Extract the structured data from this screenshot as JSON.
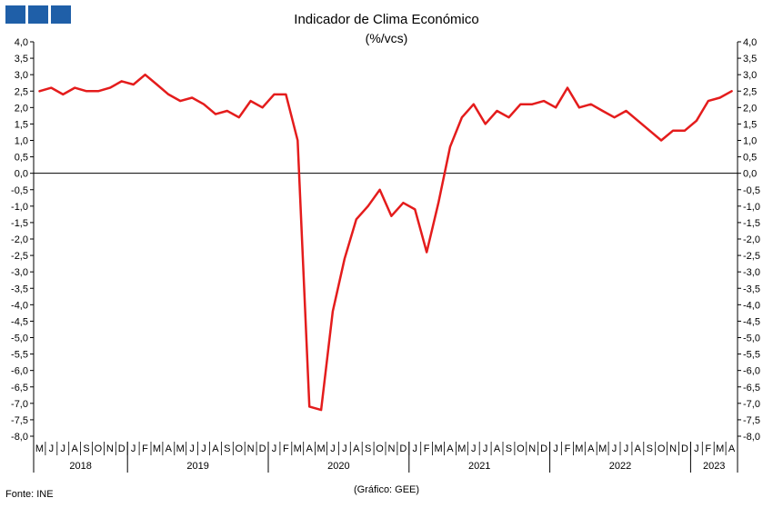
{
  "header": {
    "title": "Indicador de Clima Económico",
    "subtitle": "(%/vcs)"
  },
  "footer": {
    "source": "Fonte: INE",
    "credit": "(Gráfico: GEE)"
  },
  "colors": {
    "logo": "#1f5fa8",
    "line": "#e41c1c",
    "axis": "#000000"
  },
  "chart_data": {
    "type": "line",
    "title": "Indicador de Clima Económico",
    "subtitle": "(%/vcs)",
    "ylim": [
      -8.0,
      4.0
    ],
    "ytick_step": 0.5,
    "y_axes": "left-and-right",
    "grid": false,
    "legend": "none",
    "y_tick_labels": [
      "4,0",
      "3,5",
      "3,0",
      "2,5",
      "2,0",
      "1,5",
      "1,0",
      "0,5",
      "0,0",
      "-0,5",
      "-1,0",
      "-1,5",
      "-2,0",
      "-2,5",
      "-3,0",
      "-3,5",
      "-4,0",
      "-4,5",
      "-5,0",
      "-5,5",
      "-6,0",
      "-6,5",
      "-7,0",
      "-7,5",
      "-8,0"
    ],
    "x_month_labels": [
      "M",
      "J",
      "J",
      "A",
      "S",
      "O",
      "N",
      "D",
      "J",
      "F",
      "M",
      "A",
      "M",
      "J",
      "J",
      "A",
      "S",
      "O",
      "N",
      "D",
      "J",
      "F",
      "M",
      "A",
      "M",
      "J",
      "J",
      "A",
      "S",
      "O",
      "N",
      "D",
      "J",
      "F",
      "M",
      "A",
      "M",
      "J",
      "J",
      "A",
      "S",
      "O",
      "N",
      "D",
      "J",
      "F",
      "M",
      "A",
      "M",
      "J",
      "J",
      "A",
      "S",
      "O",
      "N",
      "D",
      "J",
      "F",
      "M",
      "A"
    ],
    "x_year_groups": [
      {
        "label": "2018",
        "count": 8
      },
      {
        "label": "2019",
        "count": 12
      },
      {
        "label": "2020",
        "count": 12
      },
      {
        "label": "2021",
        "count": 12
      },
      {
        "label": "2022",
        "count": 12
      },
      {
        "label": "2023",
        "count": 4
      }
    ],
    "series": [
      {
        "values": [
          2.5,
          2.6,
          2.4,
          2.6,
          2.5,
          2.5,
          2.6,
          2.8,
          2.7,
          3.0,
          2.7,
          2.4,
          2.2,
          2.3,
          2.1,
          1.8,
          1.9,
          1.7,
          2.2,
          2.0,
          2.4,
          2.4,
          1.0,
          -7.1,
          -7.2,
          -4.2,
          -2.6,
          -1.4,
          -1.0,
          -0.5,
          -1.3,
          -0.9,
          -1.1,
          -2.4,
          -0.9,
          0.8,
          1.7,
          2.1,
          1.5,
          1.9,
          1.7,
          2.1,
          2.1,
          2.2,
          2.0,
          2.6,
          2.0,
          2.1,
          1.9,
          1.7,
          1.9,
          1.6,
          1.3,
          1.0,
          1.3,
          1.3,
          1.6,
          2.2,
          2.3,
          2.5
        ]
      }
    ]
  }
}
